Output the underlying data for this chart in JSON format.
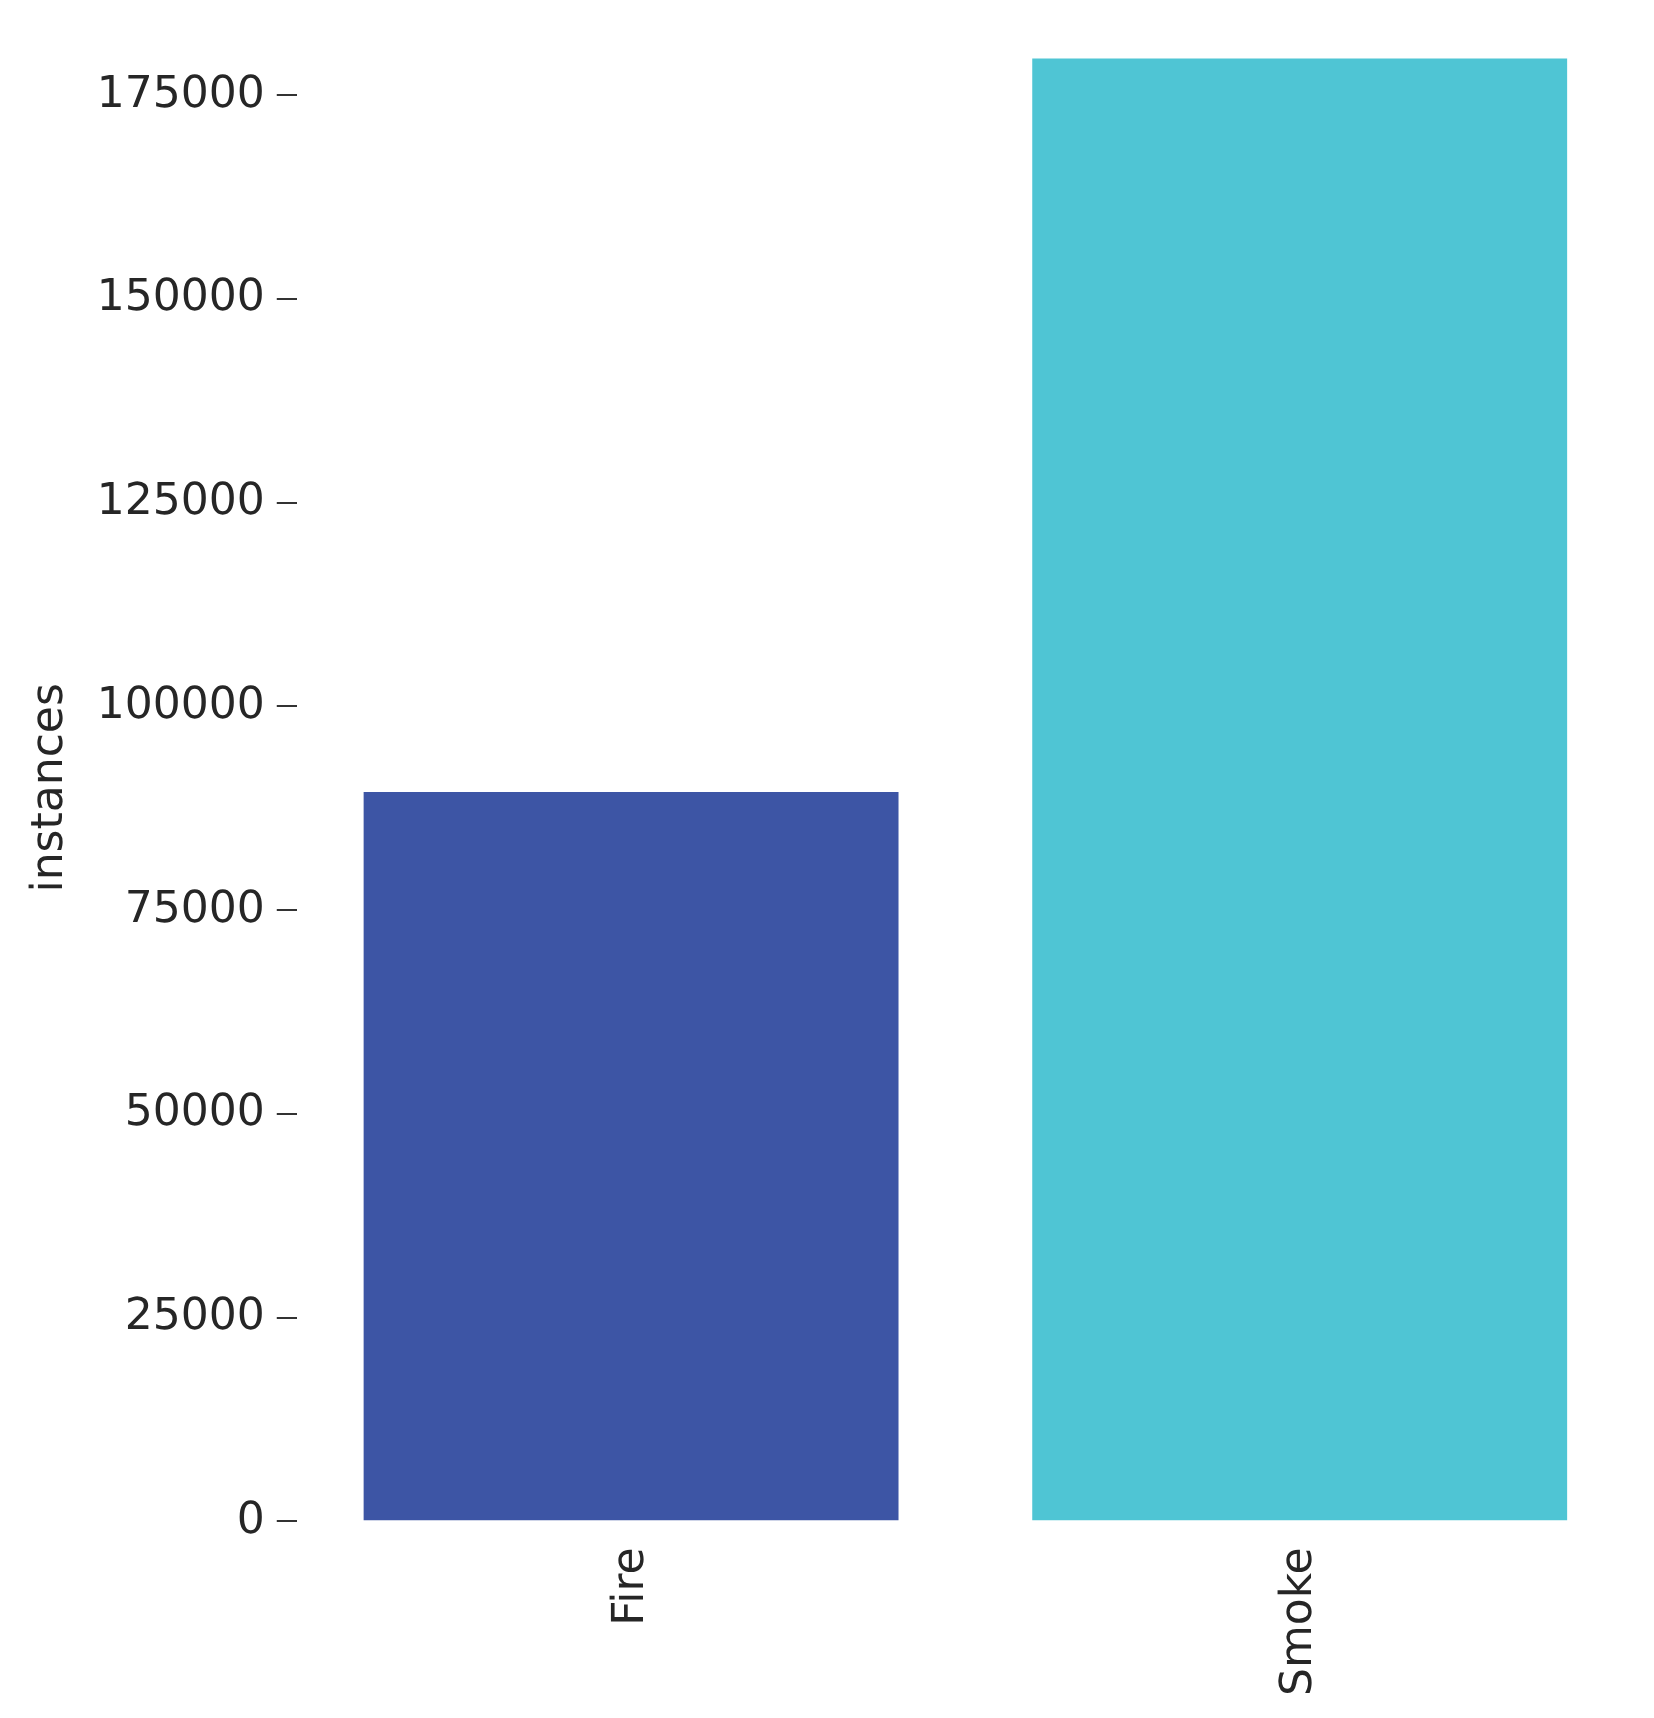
{
  "chart_data": {
    "type": "bar",
    "ylabel": "instances",
    "categories": [
      "Fire",
      "Smoke"
    ],
    "values": [
      89500,
      179500
    ],
    "colors": [
      "#3d55a5",
      "#4fc5d4"
    ],
    "ylim": [
      0,
      180000
    ],
    "yticks": [
      0,
      25000,
      50000,
      75000,
      100000,
      125000,
      150000,
      175000
    ],
    "grid": false,
    "legend": false
  }
}
